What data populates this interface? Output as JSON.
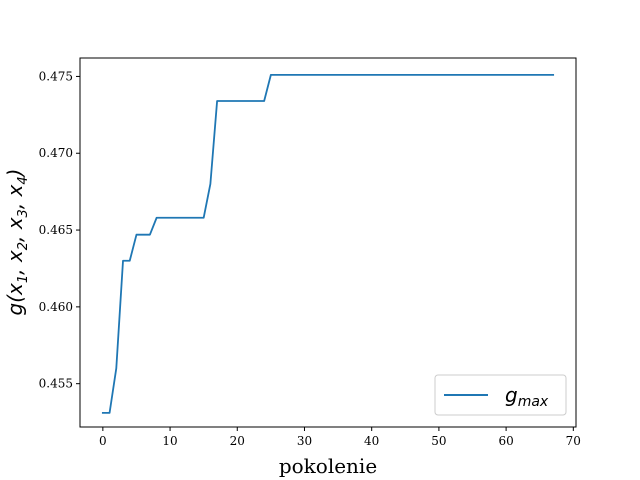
{
  "chart_data": {
    "type": "line",
    "xlabel": "pokolenie",
    "ylabel": "g(x₁, x₂, x₃, x₄)",
    "xlim": [
      -3.4,
      70.4
    ],
    "ylim": [
      0.45218,
      0.4762
    ],
    "xticks": [
      0,
      10,
      20,
      30,
      40,
      50,
      60,
      70
    ],
    "yticks": [
      0.455,
      0.46,
      0.465,
      0.47,
      0.475
    ],
    "ytick_labels": [
      "0.455",
      "0.460",
      "0.465",
      "0.470",
      "0.475"
    ],
    "grid": false,
    "legend_position": "lower-right",
    "series": [
      {
        "name": "g_max",
        "legend_main": "g",
        "legend_sub": "max",
        "color": "#1f77b4",
        "x": [
          0,
          1,
          2,
          3,
          4,
          5,
          6,
          7,
          8,
          9,
          10,
          11,
          12,
          13,
          14,
          15,
          16,
          17,
          18,
          19,
          20,
          21,
          22,
          23,
          24,
          25,
          26,
          27,
          28,
          29,
          30,
          31,
          32,
          33,
          34,
          35,
          36,
          37,
          38,
          39,
          40,
          41,
          42,
          43,
          44,
          45,
          46,
          47,
          48,
          49,
          50,
          51,
          52,
          53,
          54,
          55,
          56,
          57,
          58,
          59,
          60,
          61,
          62,
          63,
          64,
          65,
          66,
          67
        ],
        "y": [
          0.4531,
          0.4531,
          0.456,
          0.463,
          0.463,
          0.4647,
          0.4647,
          0.4647,
          0.4658,
          0.4658,
          0.4658,
          0.4658,
          0.4658,
          0.4658,
          0.4658,
          0.4658,
          0.468,
          0.4734,
          0.4734,
          0.4734,
          0.4734,
          0.4734,
          0.4734,
          0.4734,
          0.4734,
          0.4751,
          0.4751,
          0.4751,
          0.4751,
          0.4751,
          0.4751,
          0.4751,
          0.4751,
          0.4751,
          0.4751,
          0.4751,
          0.4751,
          0.4751,
          0.4751,
          0.4751,
          0.4751,
          0.4751,
          0.4751,
          0.4751,
          0.4751,
          0.4751,
          0.4751,
          0.4751,
          0.4751,
          0.4751,
          0.4751,
          0.4751,
          0.4751,
          0.4751,
          0.4751,
          0.4751,
          0.4751,
          0.4751,
          0.4751,
          0.4751,
          0.4751,
          0.4751,
          0.4751,
          0.4751,
          0.4751,
          0.4751,
          0.4751,
          0.4751
        ]
      }
    ]
  }
}
